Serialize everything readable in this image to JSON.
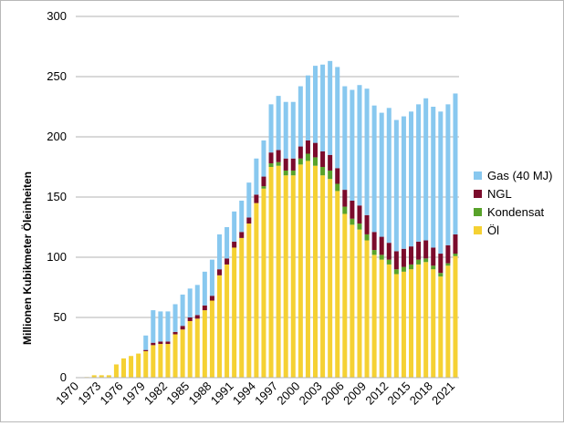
{
  "chart_data": {
    "type": "bar",
    "stacked": true,
    "title": "",
    "xlabel": "",
    "ylabel": "Millionen Kubikmeter Öleinheiten",
    "ylim": [
      0,
      300
    ],
    "yticks": [
      0,
      50,
      100,
      150,
      200,
      250,
      300
    ],
    "grid": "horizontal",
    "legend_position": "right",
    "x_tick_labels": [
      "1970",
      "1973",
      "1976",
      "1979",
      "1982",
      "1985",
      "1988",
      "1991",
      "1994",
      "1997",
      "2000",
      "2003",
      "2006",
      "2009",
      "2012",
      "2015",
      "2018",
      "2021"
    ],
    "categories": [
      "1970",
      "1971",
      "1972",
      "1973",
      "1974",
      "1975",
      "1976",
      "1977",
      "1978",
      "1979",
      "1980",
      "1981",
      "1982",
      "1983",
      "1984",
      "1985",
      "1986",
      "1987",
      "1988",
      "1989",
      "1990",
      "1991",
      "1992",
      "1993",
      "1994",
      "1995",
      "1996",
      "1997",
      "1998",
      "1999",
      "2000",
      "2001",
      "2002",
      "2003",
      "2004",
      "2005",
      "2006",
      "2007",
      "2008",
      "2009",
      "2010",
      "2011",
      "2012",
      "2013",
      "2014",
      "2015",
      "2016",
      "2017",
      "2018",
      "2019",
      "2020",
      "2021"
    ],
    "series": [
      {
        "name": "Öl",
        "color": "#f5d133",
        "values": [
          0,
          0.5,
          2,
          2,
          2,
          11,
          16,
          18,
          20,
          22,
          27,
          28,
          28,
          36,
          40,
          47,
          49,
          56,
          64,
          85,
          94,
          108,
          116,
          128,
          145,
          157,
          175,
          176,
          168,
          168,
          177,
          180,
          176,
          168,
          165,
          155,
          136,
          127,
          123,
          114,
          102,
          98,
          94,
          86,
          88,
          90,
          94,
          96,
          90,
          84,
          93,
          101
        ]
      },
      {
        "name": "Kondensat",
        "color": "#58a22a",
        "values": [
          0,
          0,
          0,
          0,
          0,
          0,
          0,
          0,
          0,
          0,
          0,
          0,
          0,
          0,
          0,
          0,
          0,
          0,
          0,
          0,
          0,
          0,
          0,
          0,
          0,
          2,
          3,
          3,
          4,
          4,
          5,
          6,
          7,
          7,
          7,
          6,
          6,
          5,
          5,
          5,
          4,
          4,
          4,
          4,
          4,
          4,
          4,
          3,
          3,
          3,
          2,
          2
        ]
      },
      {
        "name": "NGL",
        "color": "#7b0b2c",
        "values": [
          0,
          0,
          0,
          0,
          0,
          0,
          0,
          0,
          0,
          1,
          2,
          2,
          2,
          2,
          3,
          3,
          3,
          4,
          4,
          5,
          5,
          5,
          5,
          5,
          7,
          8,
          9,
          10,
          10,
          10,
          10,
          11,
          12,
          13,
          13,
          13,
          14,
          15,
          15,
          16,
          15,
          15,
          14,
          15,
          15,
          15,
          15,
          15,
          15,
          16,
          15,
          16
        ]
      },
      {
        "name": "Gas (40 MJ)",
        "color": "#88c8ef",
        "values": [
          0,
          0,
          0,
          0,
          0,
          0,
          0,
          0,
          0,
          12,
          27,
          25,
          25,
          23,
          26,
          24,
          25,
          28,
          30,
          29,
          26,
          25,
          26,
          29,
          30,
          30,
          40,
          45,
          47,
          47,
          50,
          54,
          64,
          72,
          78,
          84,
          86,
          92,
          100,
          105,
          105,
          103,
          112,
          109,
          110,
          112,
          114,
          118,
          117,
          118,
          117,
          117
        ]
      }
    ]
  }
}
